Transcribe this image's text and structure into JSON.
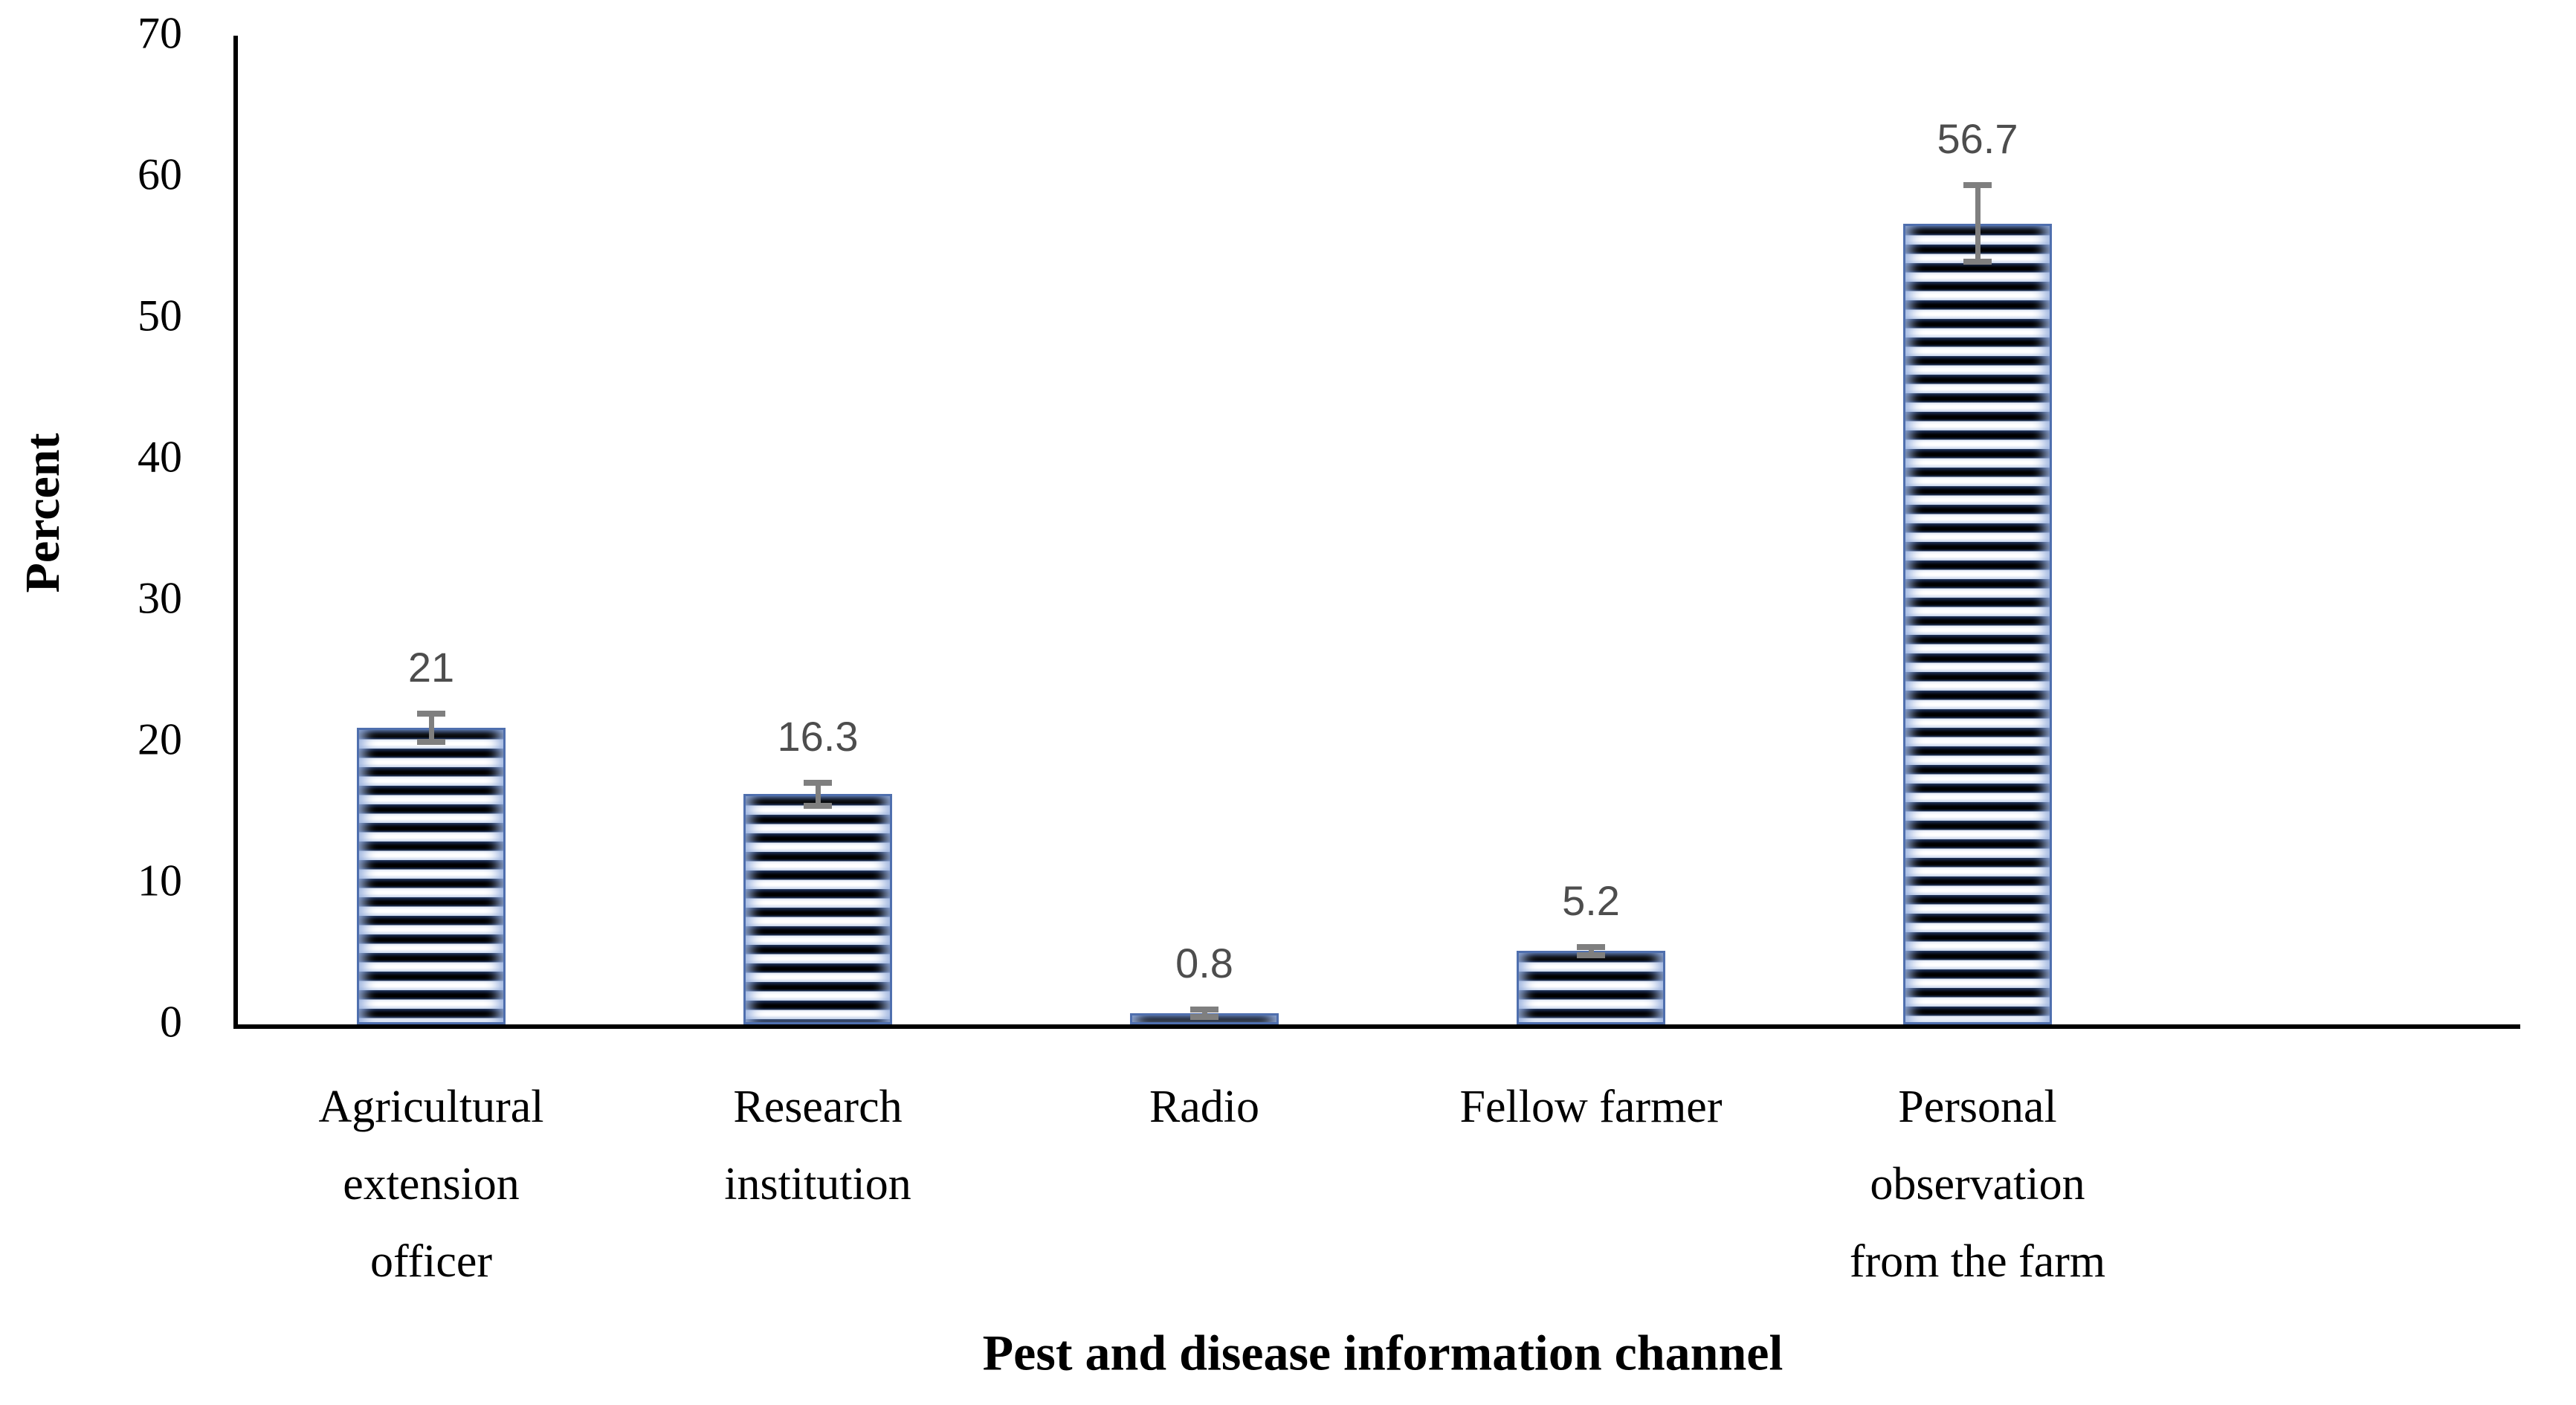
{
  "chart_data": {
    "type": "bar",
    "title": "",
    "xlabel": "Pest and disease information channel",
    "ylabel": "Percent",
    "categories": [
      "Agricultural extension officer",
      "Research institution",
      "Radio",
      "Fellow farmer",
      "Personal observation from the farm"
    ],
    "category_lines": [
      [
        "Agricultural",
        "extension",
        "officer"
      ],
      [
        "Research",
        "institution"
      ],
      [
        "Radio"
      ],
      [
        "Fellow farmer"
      ],
      [
        "Personal",
        "observation",
        "from the farm"
      ]
    ],
    "values": [
      21,
      16.3,
      0.8,
      5.2,
      56.7
    ],
    "value_labels": [
      "21",
      "16.3",
      "0.8",
      "5.2",
      "56.7"
    ],
    "error_bars": [
      1.0,
      0.8,
      0.25,
      0.3,
      2.7
    ],
    "yticks": [
      0,
      10,
      20,
      30,
      40,
      50,
      60,
      70
    ],
    "ylim": [
      0,
      70
    ],
    "grid": false,
    "legend": false,
    "colors": {
      "bar_stripe_dark": "#000000",
      "bar_stripe_navy": "#1c2f54",
      "bar_stripe_light": "#ffffff",
      "bar_edge_glow": "#c9d6ec",
      "bar_border": "#4f6fae",
      "error_bar": "#7f7f7f",
      "data_label": "#4d4d4d",
      "axis": "#000000",
      "background": "#ffffff"
    }
  }
}
